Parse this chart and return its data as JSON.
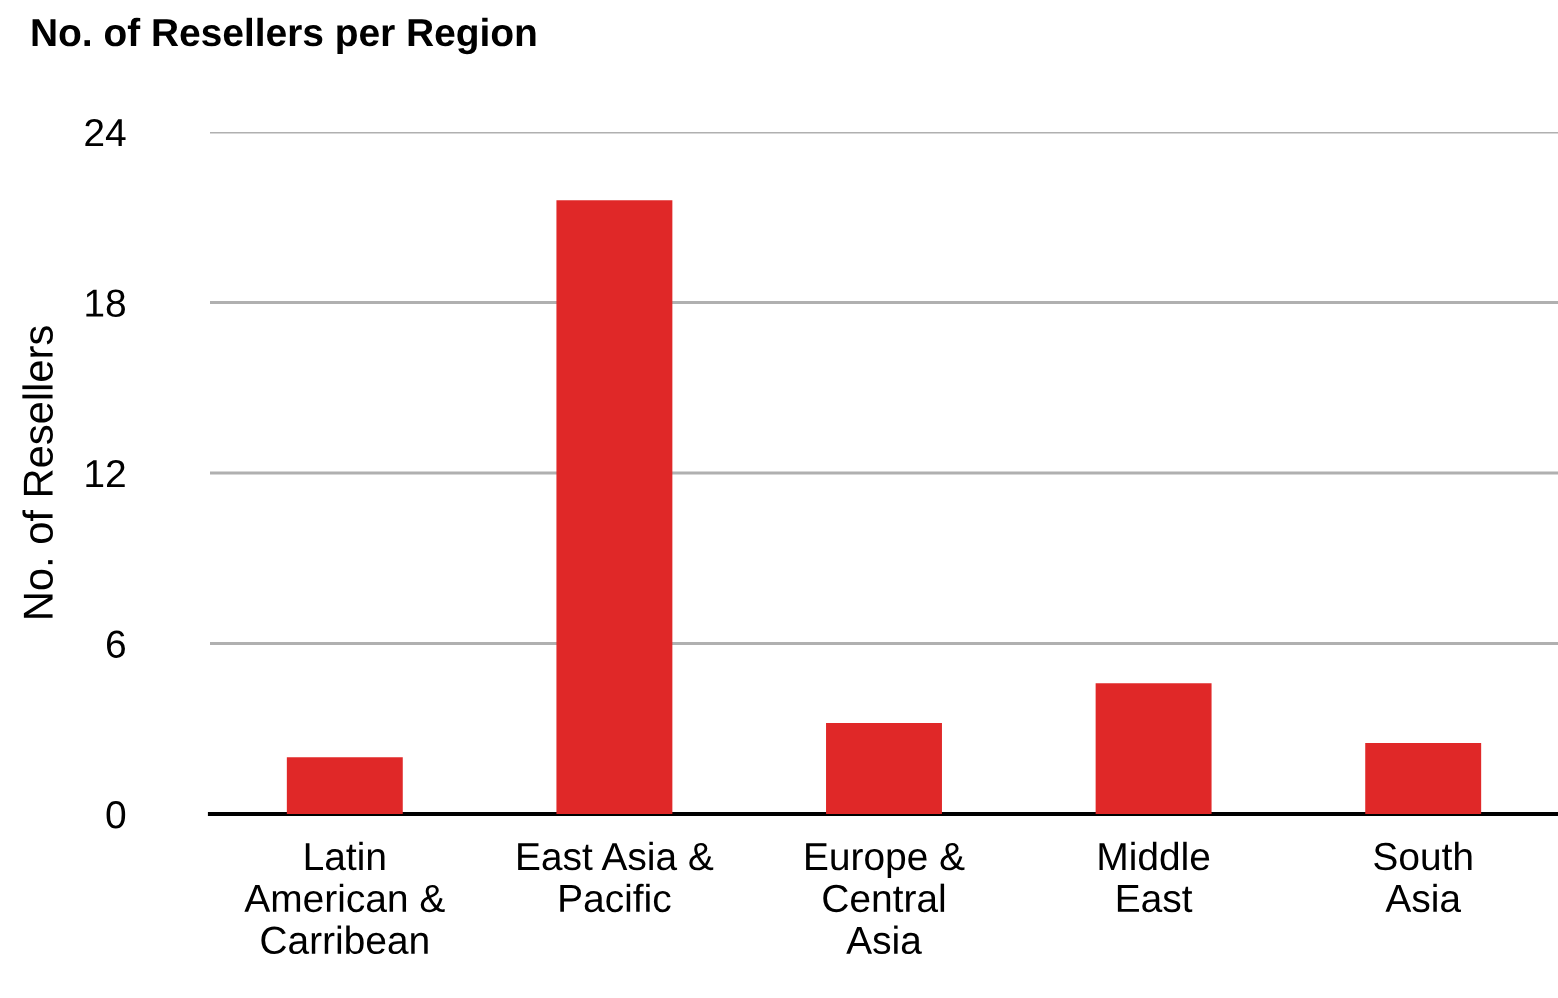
{
  "chart_data": {
    "type": "bar",
    "title": "No. of Resellers per Region",
    "ylabel": "No. of Resellers",
    "categories": [
      "Latin\nAmerican &\nCarribean",
      "East Asia &\nPacific",
      "Europe &\nCentral\nAsia",
      "Middle\nEast",
      "South\nAsia"
    ],
    "values": [
      2.0,
      21.6,
      3.2,
      4.6,
      2.5
    ],
    "color": "#e02828",
    "ylim": [
      0,
      24
    ],
    "yticks": [
      0,
      6,
      12,
      18,
      24
    ],
    "grid": "y",
    "legend": false
  }
}
